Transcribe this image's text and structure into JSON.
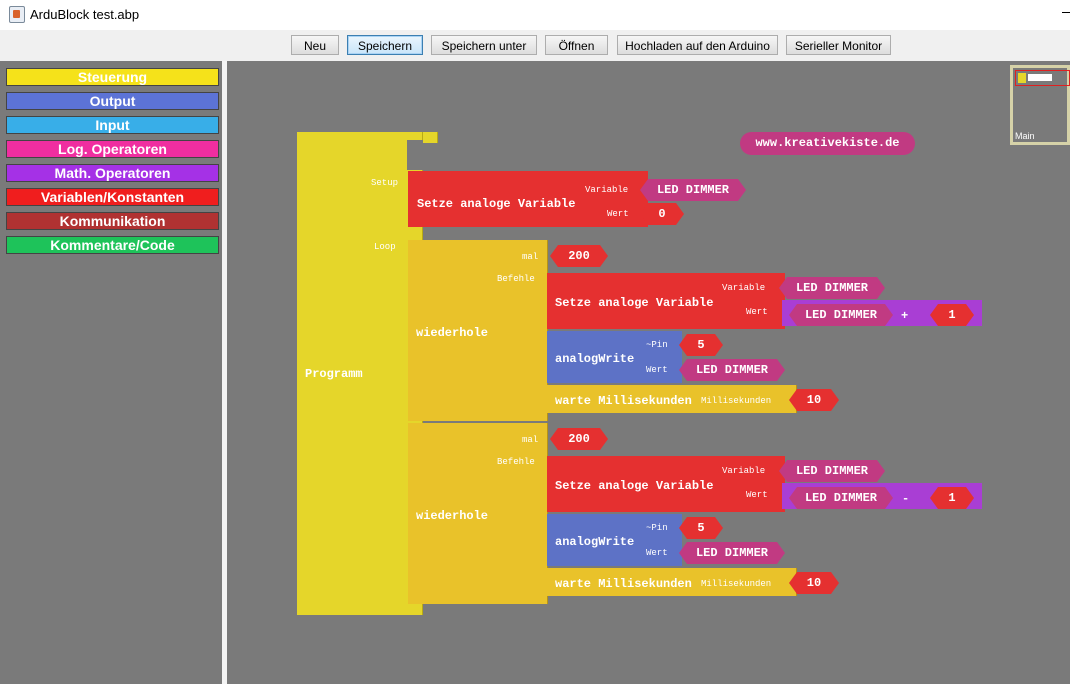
{
  "window": {
    "title": "ArduBlock test.abp"
  },
  "toolbar": {
    "buttons": [
      "Neu",
      "Speichern",
      "Speichern unter",
      "Öffnen",
      "Hochladen auf den Arduino",
      "Serieller Monitor"
    ]
  },
  "palette": {
    "categories": [
      {
        "label": "Steuerung",
        "color": "#f5e21a"
      },
      {
        "label": "Output",
        "color": "#5c73d6"
      },
      {
        "label": "Input",
        "color": "#38aee8"
      },
      {
        "label": "Log. Operatoren",
        "color": "#f02ea0"
      },
      {
        "label": "Math. Operatoren",
        "color": "#a531e6"
      },
      {
        "label": "Variablen/Konstanten",
        "color": "#f01e1e"
      },
      {
        "label": "Kommunikation",
        "color": "#b03232"
      },
      {
        "label": "Kommentare/Code",
        "color": "#1ec35a"
      }
    ]
  },
  "canvas": {
    "url_block": "www.kreativekiste.de",
    "program": {
      "label": "Programm",
      "setup_label": "Setup",
      "loop_label": "Loop",
      "setup": {
        "title": "Setze analoge Variable",
        "variable_label": "Variable",
        "variable": "LED DIMMER",
        "value_label": "Wert",
        "value": "0"
      },
      "loops": [
        {
          "title": "wiederhole",
          "times_label": "mal",
          "times": "200",
          "commands_label": "Befehle",
          "set_title": "Setze analoge Variable",
          "variable_label": "Variable",
          "variable": "LED DIMMER",
          "value_label": "Wert",
          "expr_var": "LED DIMMER",
          "expr_op": "+",
          "expr_val": "1",
          "write_title": "analogWrite",
          "pin_label": "~Pin",
          "pin": "5",
          "write_value_label": "Wert",
          "write_value": "LED DIMMER",
          "wait_title": "warte Millisekunden",
          "ms_label": "Millisekunden",
          "ms": "10"
        },
        {
          "title": "wiederhole",
          "times_label": "mal",
          "times": "200",
          "commands_label": "Befehle",
          "set_title": "Setze analoge Variable",
          "variable_label": "Variable",
          "variable": "LED DIMMER",
          "value_label": "Wert",
          "expr_var": "LED DIMMER",
          "expr_op": "-",
          "expr_val": "1",
          "write_title": "analogWrite",
          "pin_label": "~Pin",
          "pin": "5",
          "write_value_label": "Wert",
          "write_value": "LED DIMMER",
          "wait_title": "warte Millisekunden",
          "ms_label": "Millisekunden",
          "ms": "10"
        }
      ]
    },
    "minimap_label": "Main"
  }
}
